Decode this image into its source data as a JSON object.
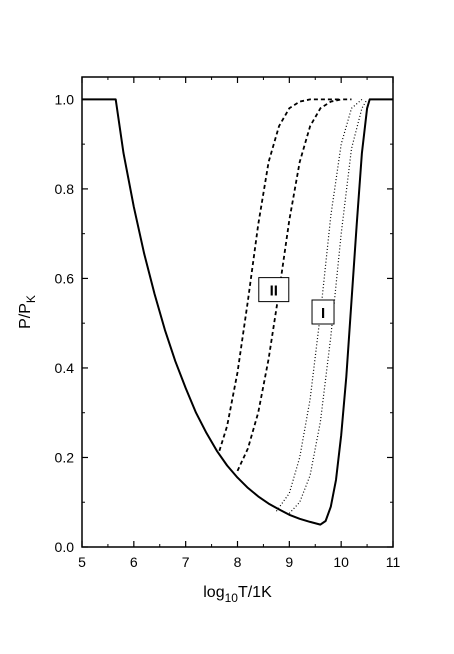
{
  "chart_data": {
    "type": "line",
    "title": "",
    "xlabel": {
      "main": "log",
      "sub": "10",
      "rest": "T/1K"
    },
    "ylabel": {
      "main": "P/P",
      "sub": "K"
    },
    "xlim": [
      5,
      11
    ],
    "ylim": [
      0,
      1.05
    ],
    "x_ticks": [
      5,
      6,
      7,
      8,
      9,
      10,
      11
    ],
    "x_tick_labels": [
      "5",
      "6",
      "7",
      "8",
      "9",
      "10",
      "11"
    ],
    "y_ticks": [
      0.0,
      0.2,
      0.4,
      0.6,
      0.8,
      1.0
    ],
    "y_tick_labels": [
      "0.0",
      "0.2",
      "0.4",
      "0.6",
      "0.8",
      "1.0"
    ],
    "grid": false,
    "legend": "none",
    "annotations": [
      {
        "text": "II",
        "x": 8.7,
        "y": 0.575
      },
      {
        "text": "I",
        "x": 9.65,
        "y": 0.525
      }
    ],
    "series": [
      {
        "style": "solid",
        "x": [
          5.0,
          5.65,
          5.8,
          6.0,
          6.2,
          6.4,
          6.6,
          6.8,
          7.0,
          7.2,
          7.4,
          7.6,
          7.8,
          8.0,
          8.2,
          8.4,
          8.6,
          8.8,
          9.0,
          9.2,
          9.4,
          9.6,
          9.7,
          9.8,
          9.9,
          10.0,
          10.1,
          10.2,
          10.3,
          10.4,
          10.5,
          10.55,
          11.0
        ],
        "y": [
          1.0,
          1.0,
          0.88,
          0.76,
          0.655,
          0.565,
          0.485,
          0.415,
          0.355,
          0.3,
          0.255,
          0.215,
          0.182,
          0.155,
          0.132,
          0.113,
          0.097,
          0.084,
          0.072,
          0.063,
          0.056,
          0.05,
          0.058,
          0.09,
          0.15,
          0.25,
          0.38,
          0.55,
          0.72,
          0.88,
          0.98,
          1.0,
          1.0
        ]
      },
      {
        "style": "dashed",
        "x": [
          7.65,
          7.8,
          8.0,
          8.2,
          8.4,
          8.6,
          8.8,
          9.0,
          9.2,
          9.4,
          9.6,
          9.8,
          10.0
        ],
        "y": [
          0.215,
          0.27,
          0.39,
          0.55,
          0.72,
          0.86,
          0.94,
          0.98,
          0.995,
          1.0,
          1.0,
          1.0,
          1.0
        ]
      },
      {
        "style": "dashed",
        "x": [
          8.0,
          8.2,
          8.4,
          8.6,
          8.8,
          9.0,
          9.2,
          9.4,
          9.6,
          9.8,
          10.0,
          10.2
        ],
        "y": [
          0.17,
          0.22,
          0.3,
          0.42,
          0.57,
          0.73,
          0.86,
          0.94,
          0.98,
          0.995,
          1.0,
          1.0
        ]
      },
      {
        "style": "dotted",
        "x": [
          8.75,
          9.0,
          9.2,
          9.4,
          9.6,
          9.8,
          10.0,
          10.2,
          10.4
        ],
        "y": [
          0.08,
          0.12,
          0.2,
          0.33,
          0.52,
          0.74,
          0.9,
          0.98,
          1.0
        ]
      },
      {
        "style": "dotted",
        "x": [
          9.0,
          9.2,
          9.4,
          9.6,
          9.8,
          10.0,
          10.2,
          10.4,
          10.5
        ],
        "y": [
          0.075,
          0.1,
          0.16,
          0.28,
          0.47,
          0.7,
          0.89,
          0.98,
          1.0
        ]
      }
    ]
  }
}
